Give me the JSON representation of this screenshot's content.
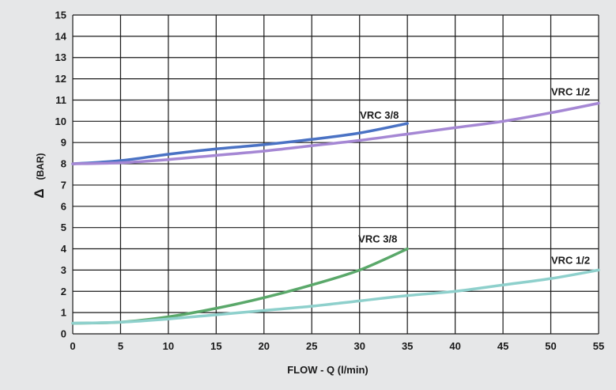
{
  "chart_data": {
    "type": "line",
    "title": "",
    "xlabel": "FLOW - Q (l/min)",
    "ylabel_symbol": "Δ",
    "ylabel_text": "(BAR)",
    "xlim": [
      0,
      55
    ],
    "ylim": [
      0,
      15
    ],
    "x_ticks": [
      0,
      5,
      10,
      15,
      20,
      25,
      30,
      35,
      40,
      45,
      50,
      55
    ],
    "y_ticks": [
      0,
      1,
      2,
      3,
      4,
      5,
      6,
      7,
      8,
      9,
      10,
      11,
      12,
      13,
      14,
      15
    ],
    "grid": true,
    "colors": {
      "plot_background": "#ffffff",
      "page_background": "#e6e7e8",
      "grid": "#1a1a1a"
    },
    "series": [
      {
        "name": "VRC 3/8",
        "color": "#4a72c4",
        "x": [
          0,
          5,
          10,
          15,
          20,
          25,
          30,
          35
        ],
        "y": [
          8.0,
          8.15,
          8.45,
          8.7,
          8.9,
          9.15,
          9.45,
          9.9
        ]
      },
      {
        "name": "VRC 1/2",
        "color": "#a587d4",
        "x": [
          0,
          5,
          10,
          15,
          20,
          25,
          30,
          35,
          40,
          45,
          50,
          55
        ],
        "y": [
          8.0,
          8.05,
          8.2,
          8.4,
          8.6,
          8.85,
          9.1,
          9.4,
          9.7,
          10.0,
          10.4,
          10.85
        ]
      },
      {
        "name": "VRC 3/8",
        "color": "#5aa86a",
        "x": [
          0,
          5,
          10,
          15,
          20,
          25,
          30,
          35
        ],
        "y": [
          0.5,
          0.55,
          0.8,
          1.2,
          1.7,
          2.3,
          3.0,
          4.0
        ]
      },
      {
        "name": "VRC 1/2",
        "color": "#8ed0cc",
        "x": [
          0,
          5,
          10,
          15,
          20,
          25,
          30,
          35,
          40,
          45,
          50,
          55
        ],
        "y": [
          0.5,
          0.55,
          0.7,
          0.9,
          1.1,
          1.3,
          1.55,
          1.8,
          2.0,
          2.3,
          2.6,
          3.0
        ]
      }
    ]
  }
}
